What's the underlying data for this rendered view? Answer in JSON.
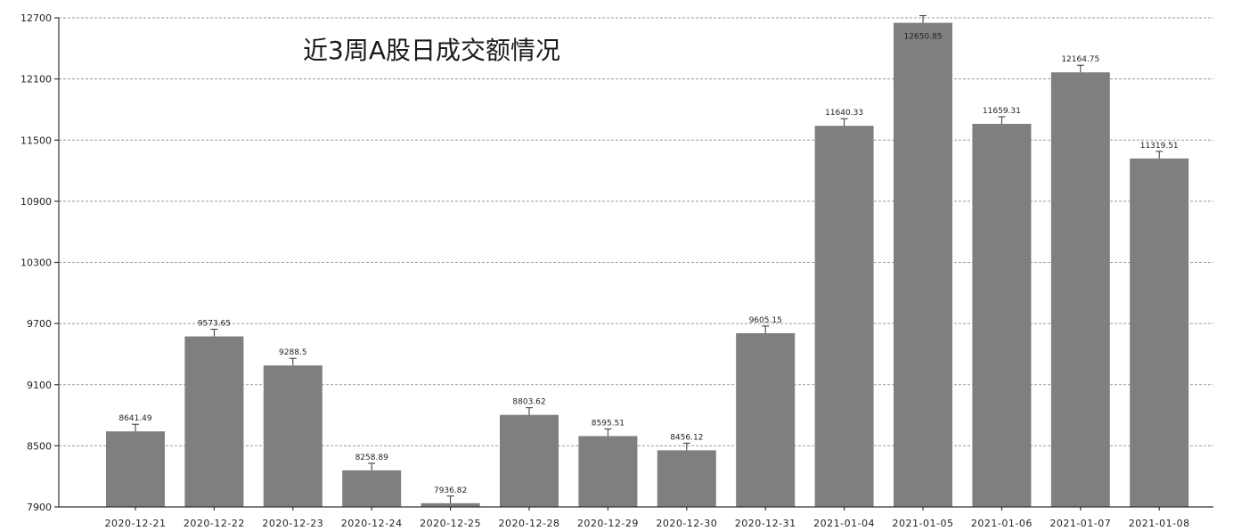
{
  "chart_data": {
    "type": "bar",
    "title": "近3周A股日成交额情况",
    "categories": [
      "2020-12-21",
      "2020-12-22",
      "2020-12-23",
      "2020-12-24",
      "2020-12-25",
      "2020-12-28",
      "2020-12-29",
      "2020-12-30",
      "2020-12-31",
      "2021-01-04",
      "2021-01-05",
      "2021-01-06",
      "2021-01-07",
      "2021-01-08"
    ],
    "values": [
      8641.49,
      9573.65,
      9288.5,
      8258.89,
      7936.82,
      8803.62,
      8595.51,
      8456.12,
      9605.15,
      11640.33,
      12650.85,
      11659.31,
      12164.75,
      11319.51
    ],
    "value_labels": [
      "8641.49",
      "9573.65",
      "9288.5",
      "8258.89",
      "7936.82",
      "8803.62",
      "8595.51",
      "8456.12",
      "9605.15",
      "11640.33",
      "12650.85",
      "11659.31",
      "12164.75",
      "11319.51"
    ],
    "yticks": [
      7900,
      8500,
      9100,
      9700,
      10300,
      10900,
      11500,
      12100,
      12700
    ],
    "ylim": [
      7900,
      12700
    ],
    "grid": true,
    "bar_color": "#7f7f7f"
  }
}
